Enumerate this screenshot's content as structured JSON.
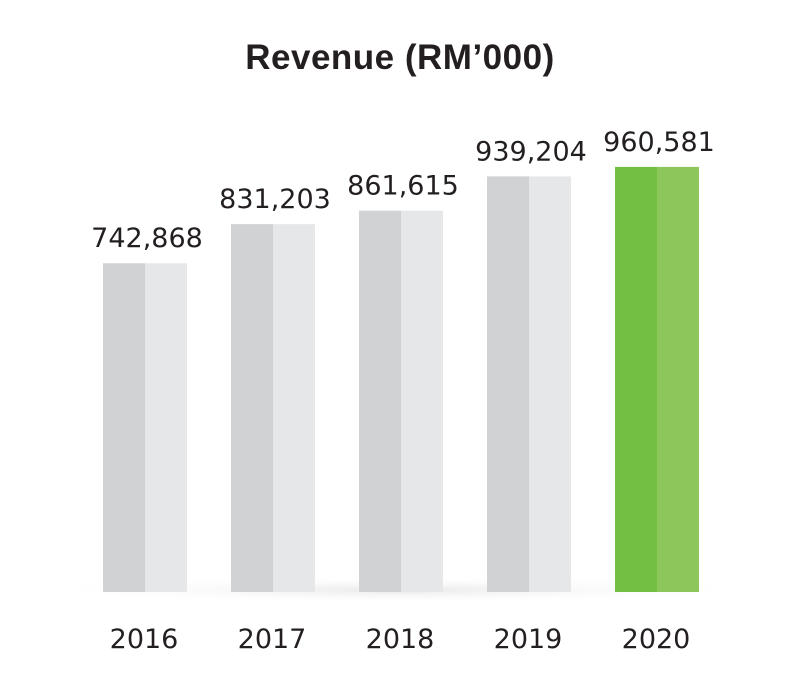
{
  "chart_data": {
    "type": "bar",
    "title": "Revenue (RM’000)",
    "xlabel": "",
    "ylabel": "",
    "categories": [
      "2016",
      "2017",
      "2018",
      "2019",
      "2020"
    ],
    "values": [
      742868,
      831203,
      861615,
      939204,
      960581
    ],
    "value_labels": [
      "742,868",
      "831,203",
      "861,615",
      "939,204",
      "960,581"
    ],
    "ylim": [
      0,
      1000000
    ],
    "grid": false,
    "legend": "none",
    "highlight_index": 4,
    "colors": {
      "bar_dark": "#d1d2d4",
      "bar_light": "#e6e7e8",
      "highlight_dark": "#72bf44",
      "highlight_light": "#8dc65a",
      "text": "#231f20"
    }
  }
}
